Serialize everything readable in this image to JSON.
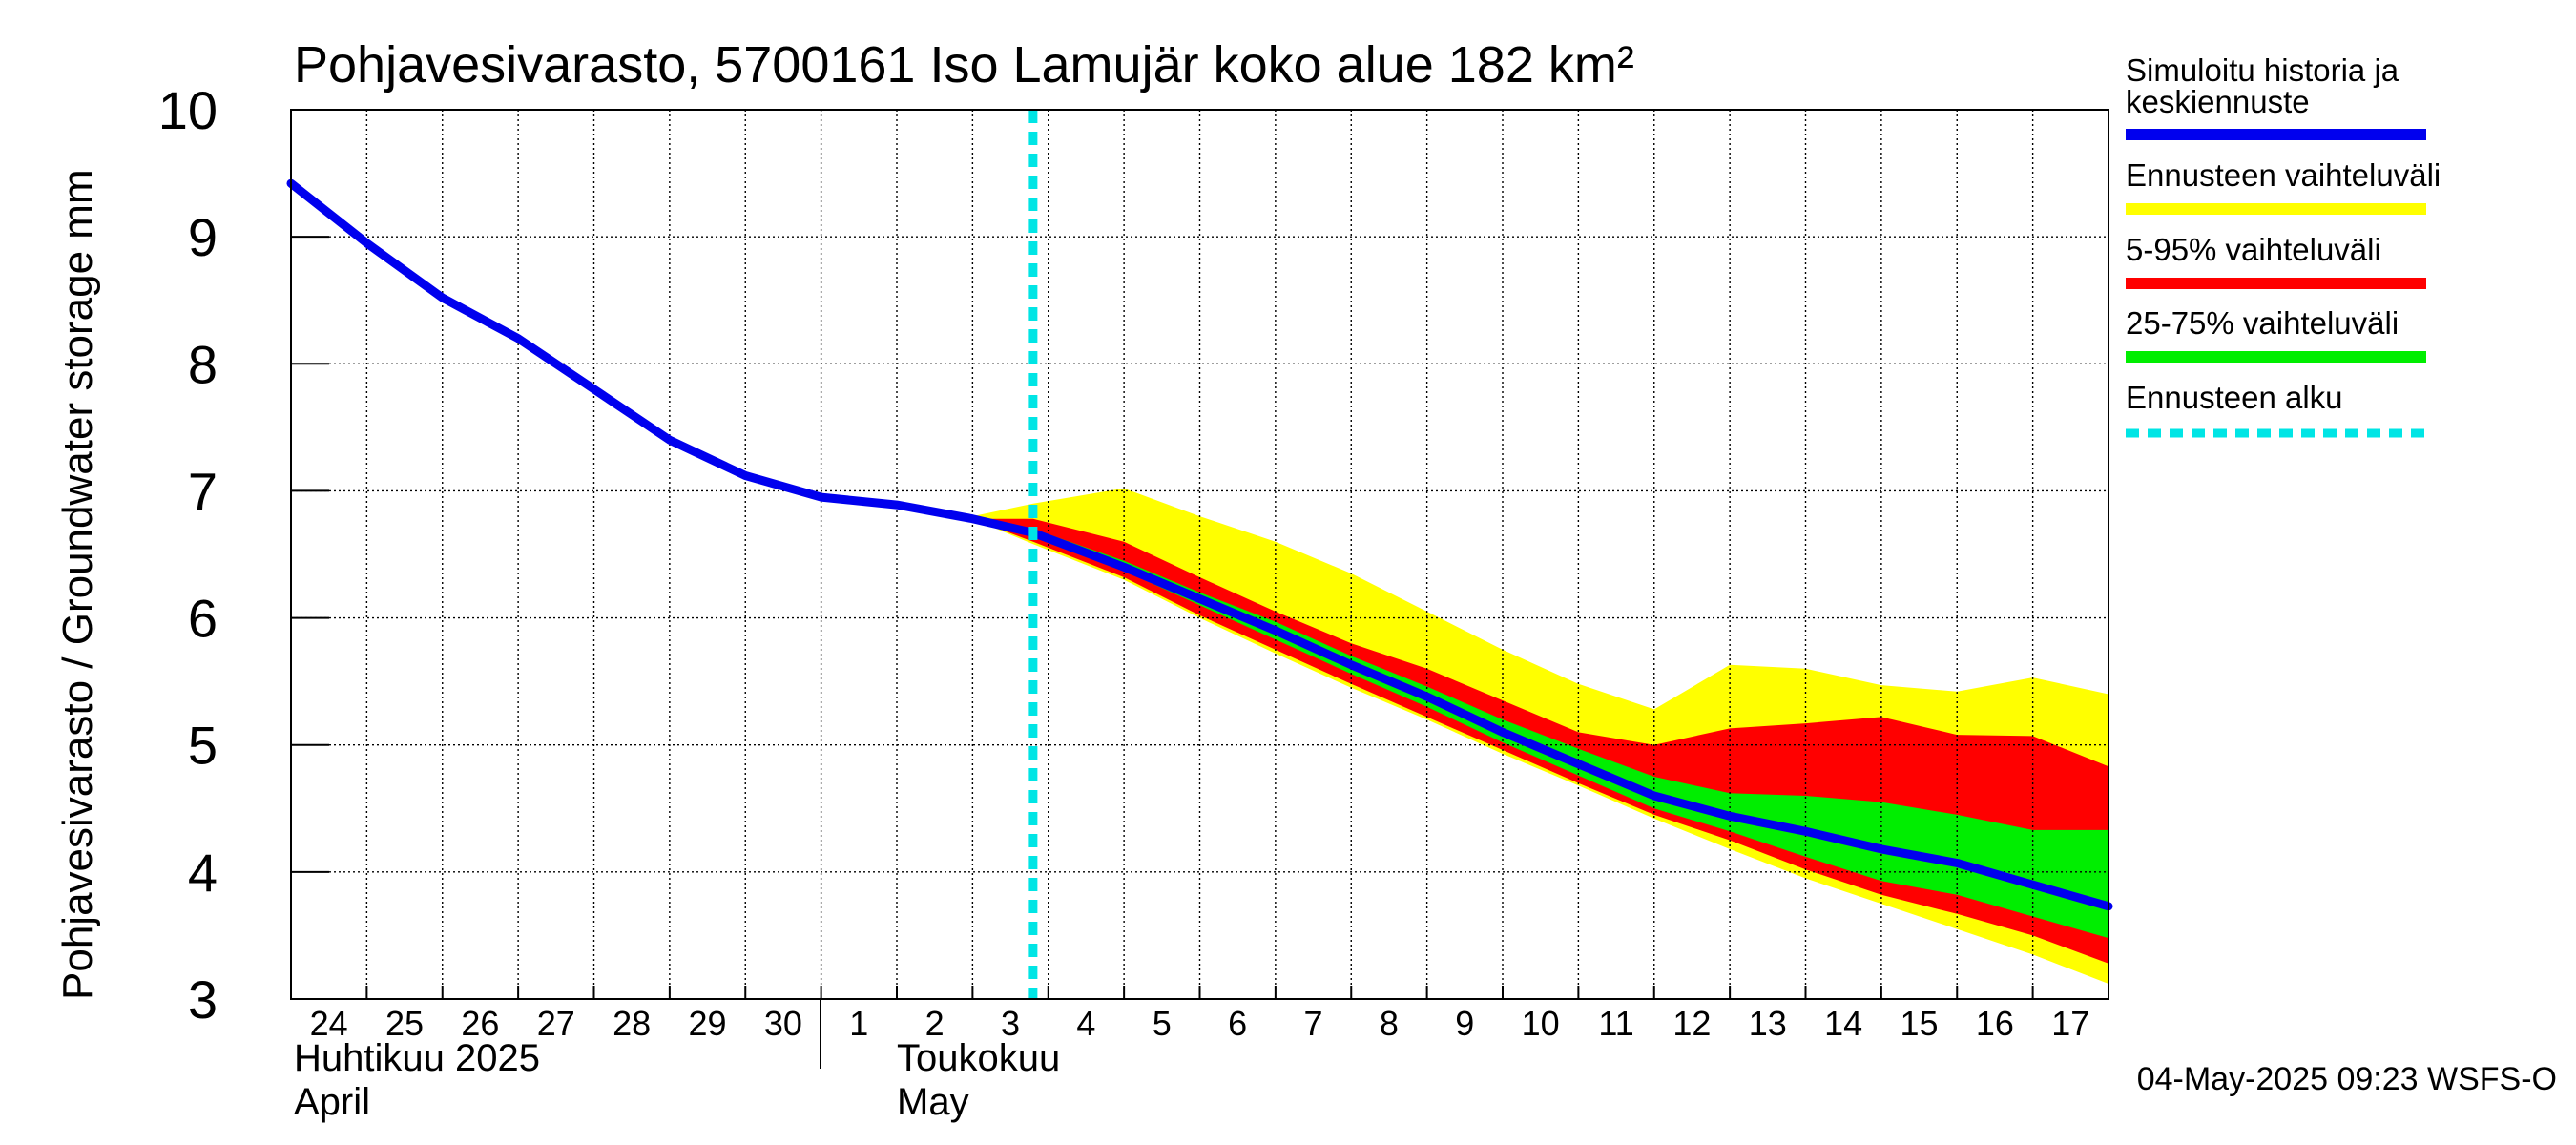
{
  "chart_data": {
    "type": "area",
    "title": "Pohjavesivarasto, 5700161 Iso Lamujär koko alue 182 km²",
    "ylabel": "Pohjavesivarasto / Groundwater storage   mm",
    "ylim": [
      3,
      10
    ],
    "yticks": [
      3,
      4,
      5,
      6,
      7,
      8,
      9,
      10
    ],
    "x_start_day": 24,
    "x_end_day": 48,
    "day_labels": [
      {
        "day": 24,
        "label": "24"
      },
      {
        "day": 25,
        "label": "25"
      },
      {
        "day": 26,
        "label": "26"
      },
      {
        "day": 27,
        "label": "27"
      },
      {
        "day": 28,
        "label": "28"
      },
      {
        "day": 29,
        "label": "29"
      },
      {
        "day": 30,
        "label": "30"
      },
      {
        "day": 31,
        "label": "1"
      },
      {
        "day": 32,
        "label": "2"
      },
      {
        "day": 33,
        "label": "3"
      },
      {
        "day": 34,
        "label": "4"
      },
      {
        "day": 35,
        "label": "5"
      },
      {
        "day": 36,
        "label": "6"
      },
      {
        "day": 37,
        "label": "7"
      },
      {
        "day": 38,
        "label": "8"
      },
      {
        "day": 39,
        "label": "9"
      },
      {
        "day": 40,
        "label": "10"
      },
      {
        "day": 41,
        "label": "11"
      },
      {
        "day": 42,
        "label": "12"
      },
      {
        "day": 43,
        "label": "13"
      },
      {
        "day": 44,
        "label": "14"
      },
      {
        "day": 45,
        "label": "15"
      },
      {
        "day": 46,
        "label": "16"
      },
      {
        "day": 47,
        "label": "17"
      }
    ],
    "month_labels": {
      "april_fi": "Huhtikuu  2025",
      "april_en": "April",
      "may_fi": "Toukokuu",
      "may_en": "May"
    },
    "forecast_start_day": 33.8,
    "series": [
      {
        "name": "Simuloitu historia ja keskiennuste",
        "color": "#0000ee",
        "x": [
          24,
          25,
          26,
          27,
          28,
          29,
          30,
          31,
          32,
          33,
          33.8,
          35,
          36,
          37,
          38,
          39,
          40,
          41,
          42,
          43,
          44,
          45,
          46,
          47,
          48
        ],
        "y": [
          9.42,
          8.95,
          8.52,
          8.2,
          7.8,
          7.4,
          7.12,
          6.95,
          6.89,
          6.78,
          6.67,
          6.4,
          6.15,
          5.9,
          5.63,
          5.38,
          5.1,
          4.85,
          4.6,
          4.44,
          4.32,
          4.18,
          4.07,
          3.9,
          3.73
        ]
      }
    ],
    "bands": [
      {
        "name": "Ennusteen vaihteluväli",
        "color": "#ffff00",
        "x": [
          33,
          33.8,
          35,
          36,
          37,
          38,
          39,
          40,
          41,
          42,
          43,
          44,
          45,
          46,
          47,
          48
        ],
        "upper": [
          6.8,
          6.9,
          7.02,
          6.8,
          6.6,
          6.35,
          6.05,
          5.75,
          5.48,
          5.28,
          5.63,
          5.6,
          5.47,
          5.42,
          5.53,
          5.4
        ],
        "lower": [
          6.78,
          6.58,
          6.3,
          6.0,
          5.72,
          5.45,
          5.2,
          4.93,
          4.68,
          4.42,
          4.18,
          3.95,
          3.75,
          3.55,
          3.35,
          3.12
        ]
      },
      {
        "name": "5-95% vaihteluväli",
        "color": "#ff0000",
        "x": [
          33,
          33.8,
          35,
          36,
          37,
          38,
          39,
          40,
          41,
          42,
          43,
          44,
          45,
          46,
          47,
          48
        ],
        "upper": [
          6.78,
          6.78,
          6.6,
          6.32,
          6.05,
          5.8,
          5.6,
          5.35,
          5.1,
          5.0,
          5.13,
          5.17,
          5.22,
          5.08,
          5.07,
          4.83
        ],
        "lower": [
          6.78,
          6.6,
          6.32,
          6.02,
          5.75,
          5.48,
          5.22,
          4.96,
          4.7,
          4.45,
          4.25,
          4.02,
          3.82,
          3.67,
          3.5,
          3.28
        ]
      },
      {
        "name": "25-75% vaihteluväli",
        "color": "#00ee00",
        "x": [
          33,
          33.8,
          35,
          36,
          37,
          38,
          39,
          40,
          41,
          42,
          43,
          44,
          45,
          46,
          47,
          48
        ],
        "upper": [
          6.78,
          6.7,
          6.45,
          6.2,
          5.97,
          5.7,
          5.46,
          5.2,
          4.97,
          4.75,
          4.62,
          4.6,
          4.55,
          4.45,
          4.33,
          4.33
        ],
        "lower": [
          6.78,
          6.65,
          6.37,
          6.1,
          5.83,
          5.56,
          5.3,
          5.02,
          4.76,
          4.5,
          4.32,
          4.12,
          3.93,
          3.82,
          3.65,
          3.48
        ]
      }
    ],
    "legend": [
      {
        "label": "Simuloitu historia ja",
        "label2": "keskiennuste",
        "color": "#0000ee",
        "style": "solid"
      },
      {
        "label": "Ennusteen vaihteluväli",
        "color": "#ffff00",
        "style": "solid"
      },
      {
        "label": "5-95% vaihteluväli",
        "color": "#ff0000",
        "style": "solid"
      },
      {
        "label": "25-75% vaihteluväli",
        "color": "#00ee00",
        "style": "solid"
      },
      {
        "label": "Ennusteen alku",
        "color": "#00e5e5",
        "style": "dashed"
      }
    ],
    "footer": "04-May-2025 09:23 WSFS-O",
    "grid": true
  }
}
